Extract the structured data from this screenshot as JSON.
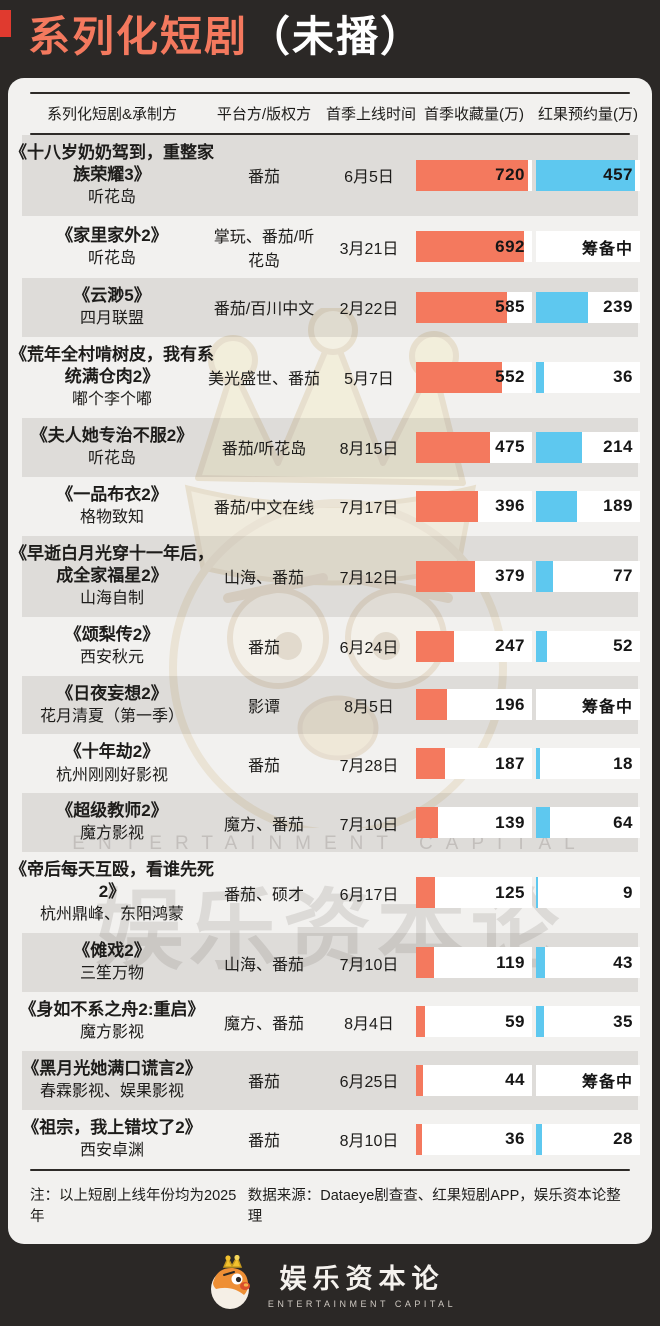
{
  "header": {
    "title_highlight": "系列化短剧",
    "title_suffix": "（未播）"
  },
  "table": {
    "columns": [
      "系列化短剧&承制方",
      "平台方/版权方",
      "首季上线时间",
      "首季收藏量(万)",
      "红果预约量(万)"
    ],
    "pending_label": "筹备中"
  },
  "rows": [
    {
      "title": "《十八岁奶奶驾到，重整家族荣耀3》",
      "producer": "听花岛",
      "platform": "番茄",
      "date": "6月5日",
      "collection": 720,
      "reservation": 457,
      "reservation_status": null
    },
    {
      "title": "《家里家外2》",
      "producer": "听花岛",
      "platform": "掌玩、番茄/听花岛",
      "date": "3月21日",
      "collection": 692,
      "reservation": null,
      "reservation_status": "筹备中"
    },
    {
      "title": "《云渺5》",
      "producer": "四月联盟",
      "platform": "番茄/百川中文",
      "date": "2月22日",
      "collection": 585,
      "reservation": 239,
      "reservation_status": null
    },
    {
      "title": "《荒年全村啃树皮，我有系统满仓肉2》",
      "producer": "嘟个李个嘟",
      "platform": "美光盛世、番茄",
      "date": "5月7日",
      "collection": 552,
      "reservation": 36,
      "reservation_status": null
    },
    {
      "title": "《夫人她专治不服2》",
      "producer": "听花岛",
      "platform": "番茄/听花岛",
      "date": "8月15日",
      "collection": 475,
      "reservation": 214,
      "reservation_status": null
    },
    {
      "title": "《一品布衣2》",
      "producer": "格物致知",
      "platform": "番茄/中文在线",
      "date": "7月17日",
      "collection": 396,
      "reservation": 189,
      "reservation_status": null
    },
    {
      "title": "《早逝白月光穿十一年后，成全家福星2》",
      "producer": "山海自制",
      "platform": "山海、番茄",
      "date": "7月12日",
      "collection": 379,
      "reservation": 77,
      "reservation_status": null
    },
    {
      "title": "《颂梨传2》",
      "producer": "西安秋元",
      "platform": "番茄",
      "date": "6月24日",
      "collection": 247,
      "reservation": 52,
      "reservation_status": null
    },
    {
      "title": "《日夜妄想2》",
      "producer": "花月清夏（第一季）",
      "platform": "影谭",
      "date": "8月5日",
      "collection": 196,
      "reservation": null,
      "reservation_status": "筹备中"
    },
    {
      "title": "《十年劫2》",
      "producer": "杭州刚刚好影视",
      "platform": "番茄",
      "date": "7月28日",
      "collection": 187,
      "reservation": 18,
      "reservation_status": null
    },
    {
      "title": "《超级教师2》",
      "producer": "魔方影视",
      "platform": "魔方、番茄",
      "date": "7月10日",
      "collection": 139,
      "reservation": 64,
      "reservation_status": null
    },
    {
      "title": "《帝后每天互殴，看谁先死2》",
      "producer": "杭州鼎峰、东阳鸿蒙",
      "platform": "番茄、硕才",
      "date": "6月17日",
      "collection": 125,
      "reservation": 9,
      "reservation_status": null
    },
    {
      "title": "《傩戏2》",
      "producer": "三笙万物",
      "platform": "山海、番茄",
      "date": "7月10日",
      "collection": 119,
      "reservation": 43,
      "reservation_status": null
    },
    {
      "title": "《身如不系之舟2:重启》",
      "producer": "魔方影视",
      "platform": "魔方、番茄",
      "date": "8月4日",
      "collection": 59,
      "reservation": 35,
      "reservation_status": null
    },
    {
      "title": "《黑月光她满口谎言2》",
      "producer": "春霖影视、娱果影视",
      "platform": "番茄",
      "date": "6月25日",
      "collection": 44,
      "reservation": null,
      "reservation_status": "筹备中"
    },
    {
      "title": "《祖宗，我上错坟了2》",
      "producer": "西安卓渊",
      "platform": "番茄",
      "date": "8月10日",
      "collection": 36,
      "reservation": 28,
      "reservation_status": null
    }
  ],
  "footer": {
    "note_left": "注：以上短剧上线年份均为2025年",
    "note_right": "数据来源：Dataeye剧查查、红果短剧APP，娱乐资本论整理",
    "logo_cn": "娱乐资本论",
    "logo_en": "ENTERTAINMENT CAPITAL"
  },
  "watermark": {
    "cn": "娱乐资本论",
    "en": "ENTERTAINMENT CAPITAL"
  },
  "colors": {
    "collection_bar": "#F4795E",
    "reservation_bar": "#5EC8EF",
    "title_accent": "#F4795E",
    "background_dark": "#2B2826",
    "card_background": "#F2F1EF"
  },
  "chart_data": {
    "type": "bar",
    "title": "系列化短剧（未播）",
    "categories": [
      "《十八岁奶奶驾到，重整家族荣耀3》",
      "《家里家外2》",
      "《云渺5》",
      "《荒年全村啃树皮，我有系统满仓肉2》",
      "《夫人她专治不服2》",
      "《一品布衣2》",
      "《早逝白月光穿十一年后，成全家福星2》",
      "《颂梨传2》",
      "《日夜妄想2》",
      "《十年劫2》",
      "《超级教师2》",
      "《帝后每天互殴，看谁先死2》",
      "《傩戏2》",
      "《身如不系之舟2:重启》",
      "《黑月光她满口谎言2》",
      "《祖宗，我上错坟了2》"
    ],
    "series": [
      {
        "name": "首季收藏量(万)",
        "values": [
          720,
          692,
          585,
          552,
          475,
          396,
          379,
          247,
          196,
          187,
          139,
          125,
          119,
          59,
          44,
          36
        ]
      },
      {
        "name": "红果预约量(万)",
        "values": [
          457,
          null,
          239,
          36,
          214,
          189,
          77,
          52,
          null,
          18,
          64,
          9,
          43,
          35,
          null,
          28
        ],
        "null_label": "筹备中"
      }
    ],
    "xlabel": "",
    "ylabel": "万",
    "orientation": "horizontal",
    "legend_position": "column-headers",
    "grid": false
  }
}
